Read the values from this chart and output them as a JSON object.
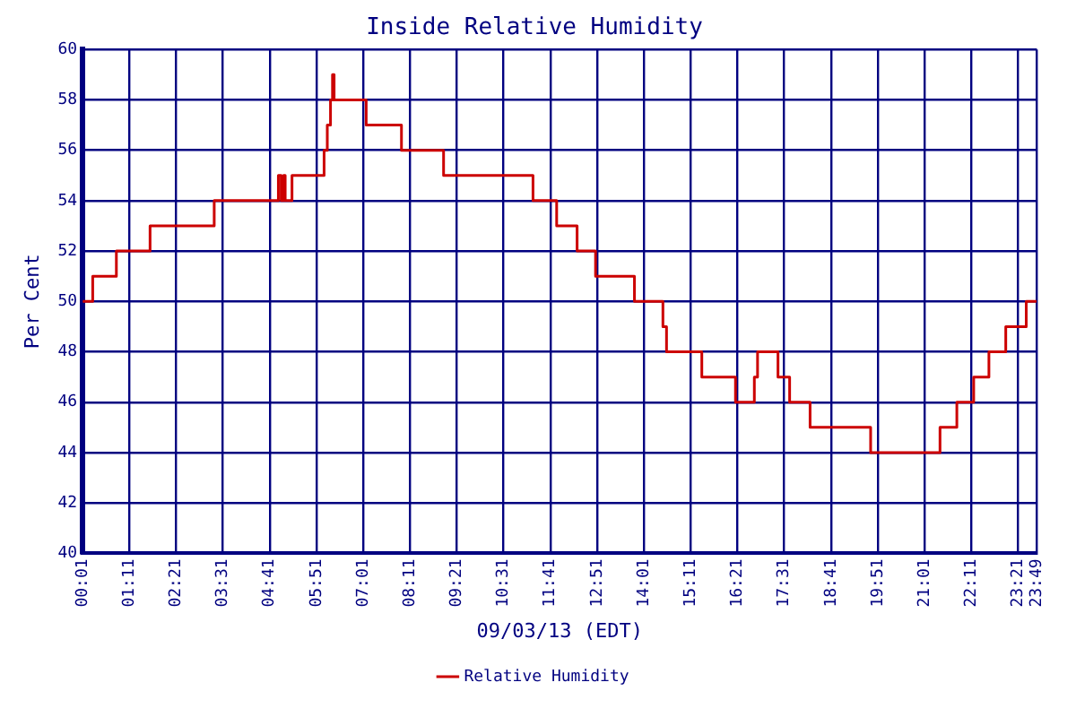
{
  "chart_data": {
    "type": "step",
    "title": "Inside Relative Humidity",
    "xlabel": "09/03/13 (EDT)",
    "ylabel": "Per Cent",
    "series": [
      {
        "name": "Relative Humidity",
        "color": "#cc0000",
        "x": [
          0.02,
          0.27,
          0.86,
          1.7,
          3.3,
          4.9,
          4.97,
          5.03,
          5.07,
          5.24,
          6.04,
          6.12,
          6.2,
          6.25,
          6.29,
          7.09,
          7.97,
          9.02,
          11.25,
          11.84,
          12.35,
          12.81,
          13.78,
          14.49,
          14.58,
          15.46,
          16.3,
          16.77,
          16.85,
          17.36,
          17.65,
          18.16,
          19.67,
          21.4,
          21.82,
          22.24,
          22.62,
          23.04,
          23.55,
          23.81
        ],
        "values": [
          50,
          51,
          52,
          53,
          54,
          55,
          54,
          55,
          54,
          55,
          56,
          57,
          58,
          59,
          58,
          57,
          56,
          55,
          54,
          53,
          52,
          51,
          50,
          49,
          48,
          47,
          46,
          47,
          48,
          47,
          46,
          45,
          44,
          45,
          46,
          47,
          48,
          49,
          50,
          50
        ]
      }
    ],
    "xlim": [
      0.0167,
      23.8167
    ],
    "xticks": [
      {
        "value": 0.0167,
        "label": "00:01"
      },
      {
        "value": 1.1833,
        "label": "01:11"
      },
      {
        "value": 2.35,
        "label": "02:21"
      },
      {
        "value": 3.5167,
        "label": "03:31"
      },
      {
        "value": 4.6833,
        "label": "04:41"
      },
      {
        "value": 5.85,
        "label": "05:51"
      },
      {
        "value": 7.0167,
        "label": "07:01"
      },
      {
        "value": 8.1833,
        "label": "08:11"
      },
      {
        "value": 9.35,
        "label": "09:21"
      },
      {
        "value": 10.5167,
        "label": "10:31"
      },
      {
        "value": 11.6833,
        "label": "11:41"
      },
      {
        "value": 12.85,
        "label": "12:51"
      },
      {
        "value": 14.0167,
        "label": "14:01"
      },
      {
        "value": 15.1833,
        "label": "15:11"
      },
      {
        "value": 16.35,
        "label": "16:21"
      },
      {
        "value": 17.5167,
        "label": "17:31"
      },
      {
        "value": 18.6833,
        "label": "18:41"
      },
      {
        "value": 19.85,
        "label": "19:51"
      },
      {
        "value": 21.0167,
        "label": "21:01"
      },
      {
        "value": 22.1833,
        "label": "22:11"
      },
      {
        "value": 23.35,
        "label": "23:21"
      },
      {
        "value": 23.8167,
        "label": "23:49"
      }
    ],
    "ylim": [
      40,
      60
    ],
    "yticks": [
      40,
      42,
      44,
      46,
      48,
      50,
      52,
      54,
      56,
      58,
      60
    ],
    "grid": true,
    "legend": "bottom",
    "marker": "none",
    "line_style": "solid"
  }
}
